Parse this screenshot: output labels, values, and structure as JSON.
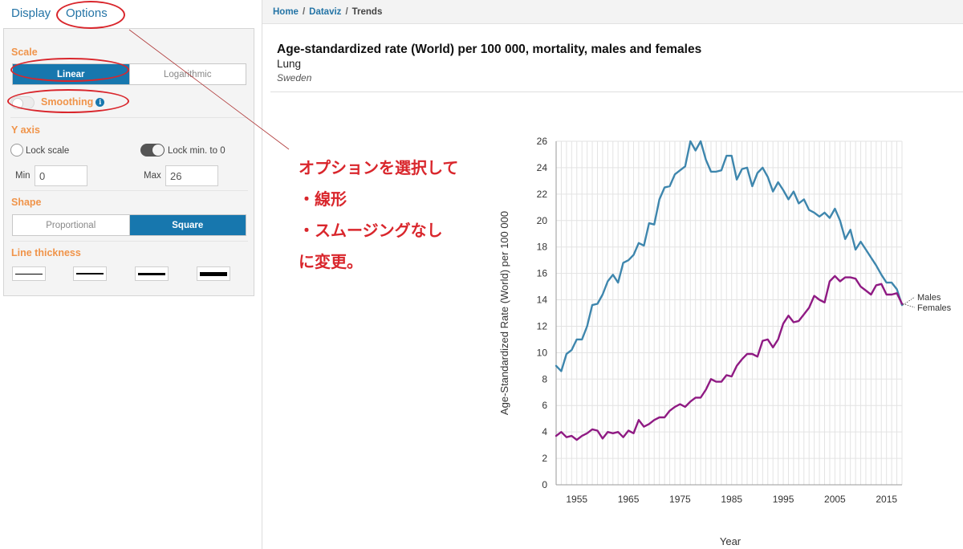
{
  "tabs": {
    "display": "Display",
    "options": "Options"
  },
  "panel": {
    "scale": {
      "title": "Scale",
      "linear": "Linear",
      "logarithmic": "Logarithmic",
      "selected": "Linear"
    },
    "smoothing": {
      "label": "Smoothing",
      "enabled": false
    },
    "y_axis": {
      "title": "Y axis",
      "lock_scale": "Lock scale",
      "lock_min": "Lock min. to 0",
      "min_label": "Min",
      "min_value": "0",
      "max_label": "Max",
      "max_value": "26"
    },
    "shape": {
      "title": "Shape",
      "proportional": "Proportional",
      "square": "Square",
      "selected": "Square"
    },
    "line_thickness": {
      "title": "Line thickness"
    }
  },
  "breadcrumb": {
    "home": "Home",
    "dataviz": "Dataviz",
    "current": "Trends",
    "sep": "/"
  },
  "note": {
    "lines": [
      "オプションを選択して",
      "・線形",
      "・スムージングなし",
      "に変更。"
    ]
  },
  "colors": {
    "accent": "#1777ae",
    "section": "#f0944a",
    "annotation": "#d9262c",
    "males": "#3e86ad",
    "females": "#8f1a83"
  },
  "chart_data": {
    "type": "line",
    "title": "Age-standardized rate (World) per 100 000, mortality, males and females",
    "subtitle": "Lung",
    "country": "Sweden",
    "xlabel": "Year",
    "ylabel": "Age-Standardized Rate (World) per 100 000",
    "xlim": [
      1951,
      2018
    ],
    "ylim": [
      0,
      26
    ],
    "x_ticks": [
      "1955",
      "1965",
      "1975",
      "1985",
      "1995",
      "2005",
      "2015"
    ],
    "y_ticks": [
      "0",
      "2",
      "4",
      "6",
      "8",
      "10",
      "12",
      "14",
      "16",
      "18",
      "20",
      "22",
      "24",
      "26"
    ],
    "grid": true,
    "legend": "end-of-line labels",
    "x": [
      1951,
      1952,
      1953,
      1954,
      1955,
      1956,
      1957,
      1958,
      1959,
      1960,
      1961,
      1962,
      1963,
      1964,
      1965,
      1966,
      1967,
      1968,
      1969,
      1970,
      1971,
      1972,
      1973,
      1974,
      1975,
      1976,
      1977,
      1978,
      1979,
      1980,
      1981,
      1982,
      1983,
      1984,
      1985,
      1986,
      1987,
      1988,
      1989,
      1990,
      1991,
      1992,
      1993,
      1994,
      1995,
      1996,
      1997,
      1998,
      1999,
      2000,
      2001,
      2002,
      2003,
      2004,
      2005,
      2006,
      2007,
      2008,
      2009,
      2010,
      2011,
      2012,
      2013,
      2014,
      2015,
      2016,
      2017,
      2018
    ],
    "series": [
      {
        "name": "Males",
        "values": [
          9.0,
          8.6,
          9.9,
          10.2,
          11.0,
          11.0,
          12.0,
          13.6,
          13.7,
          14.4,
          15.4,
          15.9,
          15.3,
          16.8,
          17.0,
          17.4,
          18.3,
          18.1,
          19.8,
          19.7,
          21.6,
          22.5,
          22.6,
          23.5,
          23.8,
          24.1,
          26.0,
          25.3,
          26.0,
          24.6,
          23.7,
          23.7,
          23.8,
          24.9,
          24.9,
          23.1,
          23.9,
          24.0,
          22.6,
          23.6,
          24.0,
          23.3,
          22.2,
          22.9,
          22.3,
          21.6,
          22.2,
          21.3,
          21.6,
          20.8,
          20.6,
          20.3,
          20.6,
          20.2,
          20.9,
          20.0,
          18.6,
          19.3,
          17.8,
          18.4,
          17.8,
          17.2,
          16.6,
          15.9,
          15.3,
          15.3,
          14.8,
          13.6
        ]
      },
      {
        "name": "Females",
        "values": [
          3.7,
          4.0,
          3.6,
          3.7,
          3.4,
          3.7,
          3.9,
          4.2,
          4.1,
          3.5,
          4.0,
          3.9,
          4.0,
          3.6,
          4.1,
          3.9,
          4.9,
          4.4,
          4.6,
          4.9,
          5.1,
          5.1,
          5.6,
          5.9,
          6.1,
          5.9,
          6.3,
          6.6,
          6.6,
          7.2,
          8.0,
          7.8,
          7.8,
          8.3,
          8.2,
          9.0,
          9.5,
          9.9,
          9.9,
          9.7,
          10.9,
          11.0,
          10.4,
          11.0,
          12.2,
          12.8,
          12.3,
          12.4,
          12.9,
          13.4,
          14.3,
          14.0,
          13.8,
          15.4,
          15.8,
          15.4,
          15.7,
          15.7,
          15.6,
          15.0,
          14.7,
          14.4,
          15.1,
          15.2,
          14.4,
          14.4,
          14.5,
          13.7
        ]
      }
    ]
  }
}
